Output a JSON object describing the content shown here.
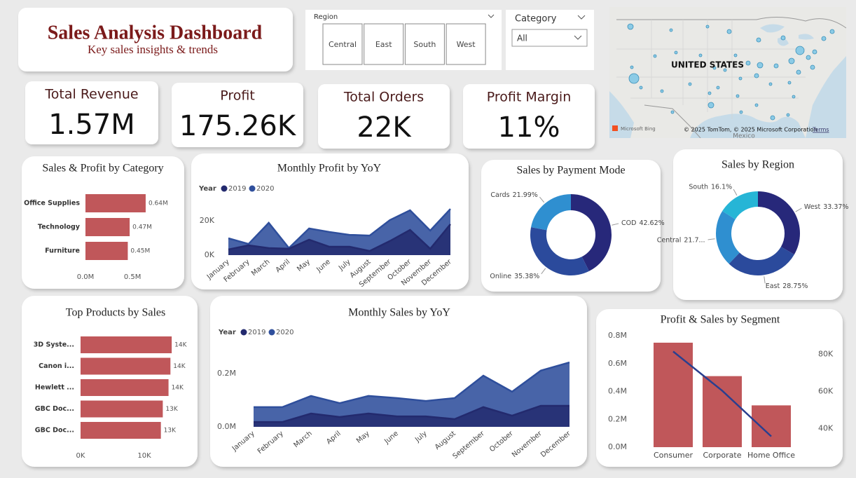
{
  "header": {
    "title": "Sales Analysis Dashboard",
    "subtitle": "Key sales insights & trends"
  },
  "slicers": {
    "region": {
      "label": "Region",
      "options": [
        "Central",
        "East",
        "South",
        "West"
      ]
    },
    "category": {
      "label": "Category",
      "selected": "All"
    }
  },
  "map": {
    "label": "UNITED STATES",
    "country": "Mexico",
    "logo": "Microsoft Bing",
    "attribution": "© 2025 TomTom, © 2025 Microsoft Corporation",
    "terms": "Terms"
  },
  "kpis": [
    {
      "label": "Total Revenue",
      "value": "1.57M"
    },
    {
      "label": "Profit",
      "value": "175.26K"
    },
    {
      "label": "Total Orders",
      "value": "22K"
    },
    {
      "label": "Profit Margin",
      "value": "11%"
    }
  ],
  "chart_data": [
    {
      "type": "hbar",
      "title": "Sales & Profit by Category",
      "categories": [
        "Office Supplies",
        "Technology",
        "Furniture"
      ],
      "values": [
        640000,
        470000,
        450000
      ],
      "value_labels": [
        "0.64M",
        "0.47M",
        "0.45M"
      ],
      "color": "#c0575a",
      "xlim": [
        0,
        700000
      ],
      "xticks": [
        {
          "value": 0,
          "label": "0.0M"
        },
        {
          "value": 500000,
          "label": "0.5M"
        }
      ]
    },
    {
      "type": "area",
      "title": "Monthly Profit by YoY",
      "legend_title": "Year",
      "categories": [
        "January",
        "February",
        "March",
        "April",
        "May",
        "June",
        "July",
        "August",
        "September",
        "October",
        "November",
        "December"
      ],
      "series": [
        {
          "name": "2019",
          "color": "#232a6e",
          "values": [
            3300,
            5700,
            4100,
            3700,
            9000,
            4900,
            4900,
            2400,
            8200,
            14700,
            3700,
            18000
          ]
        },
        {
          "name": "2020",
          "color": "#2f4f9c",
          "values": [
            9800,
            6500,
            18800,
            4100,
            15500,
            13500,
            11800,
            11400,
            20400,
            26100,
            14300,
            26900
          ]
        }
      ],
      "ylim": [
        0,
        30000
      ],
      "yticks": [
        {
          "value": 0,
          "label": "0K"
        },
        {
          "value": 20000,
          "label": "20K"
        }
      ]
    },
    {
      "type": "donut",
      "title": "Sales by Payment Mode",
      "categories": [
        "COD",
        "Online",
        "Cards"
      ],
      "values": [
        42.62,
        35.38,
        21.99
      ],
      "value_labels": [
        "42.62%",
        "35.38%",
        "21.99%"
      ],
      "colors": [
        "#27287a",
        "#2b4a9c",
        "#2f8fd0"
      ]
    },
    {
      "type": "donut",
      "title": "Sales by Region",
      "categories": [
        "West",
        "East",
        "Central",
        "South"
      ],
      "values": [
        33.37,
        28.75,
        21.78,
        16.1
      ],
      "value_labels": [
        "33.37%",
        "28.75%",
        "21.7...",
        "16.1%"
      ],
      "colors": [
        "#27287a",
        "#2b4a9c",
        "#2f8fd0",
        "#26b5d6"
      ]
    },
    {
      "type": "hbar",
      "title": "Top Products by Sales",
      "categories": [
        "3D Syste...",
        "Canon i...",
        "Hewlett ...",
        "GBC Doc...",
        "GBC Doc..."
      ],
      "values": [
        14300,
        14100,
        13800,
        12900,
        12600
      ],
      "value_labels": [
        "14K",
        "14K",
        "14K",
        "13K",
        "13K"
      ],
      "color": "#c0575a",
      "xlim": [
        0,
        16000
      ],
      "xticks": [
        {
          "value": 0,
          "label": "0K"
        },
        {
          "value": 10000,
          "label": "10K"
        }
      ]
    },
    {
      "type": "area",
      "title": "Monthly Sales by YoY",
      "legend_title": "Year",
      "categories": [
        "January",
        "February",
        "March",
        "April",
        "May",
        "June",
        "July",
        "August",
        "September",
        "October",
        "November",
        "December"
      ],
      "series": [
        {
          "name": "2019",
          "color": "#232a6e",
          "values": [
            18000,
            18000,
            50000,
            37000,
            50000,
            39000,
            39000,
            29000,
            74000,
            42000,
            79000,
            79000
          ]
        },
        {
          "name": "2020",
          "color": "#2f4f9c",
          "values": [
            74000,
            74000,
            116000,
            89000,
            116000,
            108000,
            97000,
            108000,
            192000,
            132000,
            211000,
            242000
          ]
        }
      ],
      "ylim": [
        0,
        270000
      ],
      "yticks": [
        {
          "value": 0,
          "label": "0.0M"
        },
        {
          "value": 200000,
          "label": "0.2M"
        }
      ]
    },
    {
      "type": "combo",
      "title": "Profit & Sales by Segment",
      "categories": [
        "Consumer",
        "Corporate",
        "Home Office"
      ],
      "series": [
        {
          "type": "bar",
          "color": "#c0575a",
          "values": [
            750000,
            510000,
            300000
          ]
        },
        {
          "type": "line",
          "axis": "y2",
          "color": "#2a3f8f",
          "values": [
            81500,
            60400,
            35800
          ]
        }
      ],
      "ylim": [
        0,
        800000
      ],
      "yticks": [
        {
          "value": 0,
          "label": "0.0M"
        },
        {
          "value": 200000,
          "label": "0.2M"
        },
        {
          "value": 400000,
          "label": "0.4M"
        },
        {
          "value": 600000,
          "label": "0.6M"
        },
        {
          "value": 800000,
          "label": "0.8M"
        }
      ],
      "y2lim": [
        30000,
        90000
      ],
      "y2ticks": [
        {
          "value": 40000,
          "label": "40K"
        },
        {
          "value": 60000,
          "label": "60K"
        },
        {
          "value": 80000,
          "label": "80K"
        }
      ]
    }
  ]
}
